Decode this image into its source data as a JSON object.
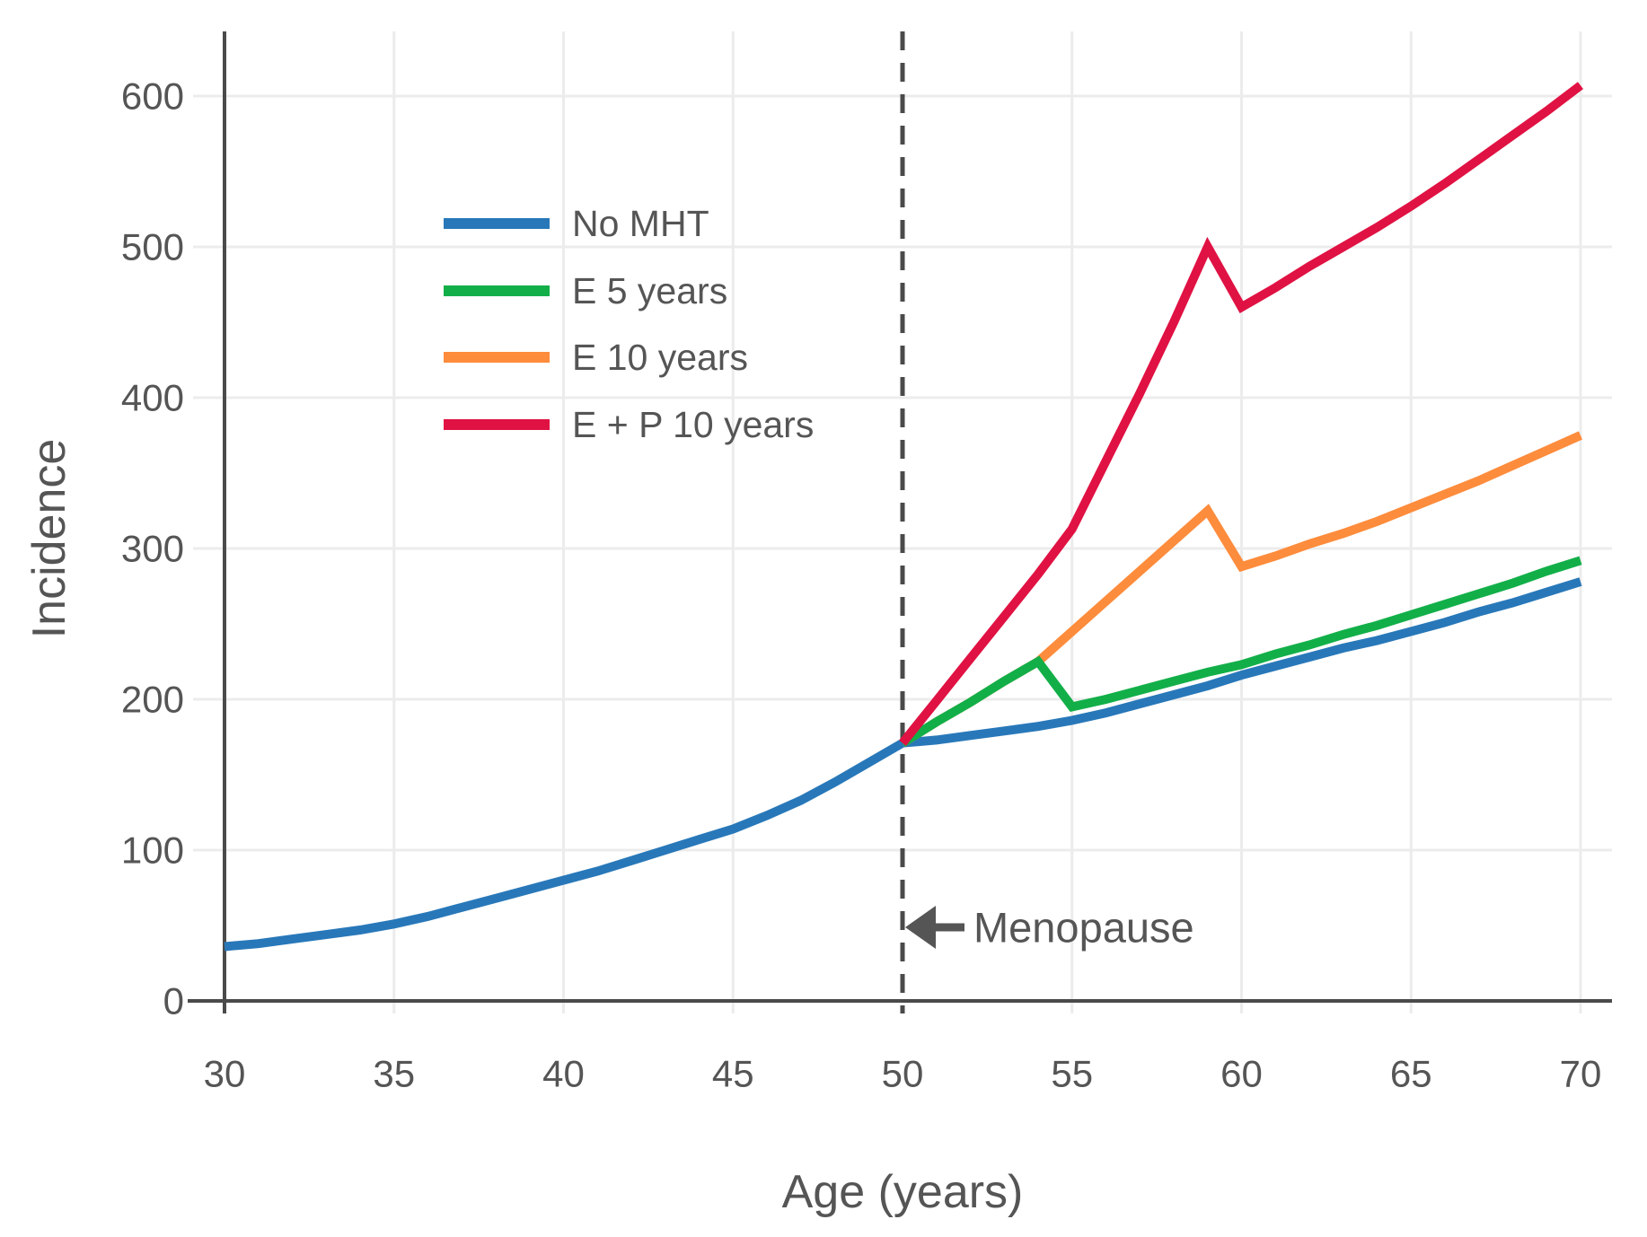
{
  "chart_data": {
    "type": "line",
    "title": "",
    "xlabel": "Age (years)",
    "ylabel": "Incidence",
    "xlim": [
      30,
      70
    ],
    "ylim": [
      0,
      600
    ],
    "x_ticks": [
      30,
      35,
      40,
      45,
      50,
      55,
      60,
      65,
      70
    ],
    "y_ticks": [
      0,
      100,
      200,
      300,
      400,
      500,
      600
    ],
    "grid": true,
    "legend_position": "upper-left-inside",
    "reference_line": {
      "x": 50,
      "style": "dashed"
    },
    "annotation": {
      "text": "Menopause",
      "x": 50,
      "y": 50,
      "arrow": "left"
    },
    "series": [
      {
        "name": "No MHT",
        "color": "#2878B9",
        "points": [
          [
            30,
            36
          ],
          [
            31,
            38
          ],
          [
            32,
            41
          ],
          [
            33,
            44
          ],
          [
            34,
            47
          ],
          [
            35,
            51
          ],
          [
            36,
            56
          ],
          [
            37,
            62
          ],
          [
            38,
            68
          ],
          [
            39,
            74
          ],
          [
            40,
            80
          ],
          [
            41,
            86
          ],
          [
            42,
            93
          ],
          [
            43,
            100
          ],
          [
            44,
            107
          ],
          [
            45,
            114
          ],
          [
            46,
            123
          ],
          [
            47,
            133
          ],
          [
            48,
            145
          ],
          [
            49,
            158
          ],
          [
            50,
            171
          ],
          [
            51,
            173
          ],
          [
            52,
            176
          ],
          [
            53,
            179
          ],
          [
            54,
            182
          ],
          [
            55,
            186
          ],
          [
            56,
            191
          ],
          [
            57,
            197
          ],
          [
            58,
            203
          ],
          [
            59,
            209
          ],
          [
            60,
            216
          ],
          [
            61,
            222
          ],
          [
            62,
            228
          ],
          [
            63,
            234
          ],
          [
            64,
            239
          ],
          [
            65,
            245
          ],
          [
            66,
            251
          ],
          [
            67,
            258
          ],
          [
            68,
            264
          ],
          [
            69,
            271
          ],
          [
            70,
            278
          ]
        ]
      },
      {
        "name": "E 5 years",
        "color": "#12AF49",
        "points": [
          [
            50,
            171
          ],
          [
            51,
            185
          ],
          [
            52,
            198
          ],
          [
            53,
            212
          ],
          [
            54,
            225
          ],
          [
            55,
            195
          ],
          [
            56,
            200
          ],
          [
            57,
            206
          ],
          [
            58,
            212
          ],
          [
            59,
            218
          ],
          [
            60,
            223
          ],
          [
            61,
            230
          ],
          [
            62,
            236
          ],
          [
            63,
            243
          ],
          [
            64,
            249
          ],
          [
            65,
            256
          ],
          [
            66,
            263
          ],
          [
            67,
            270
          ],
          [
            68,
            277
          ],
          [
            69,
            285
          ],
          [
            70,
            292
          ]
        ]
      },
      {
        "name": "E 10 years",
        "color": "#FD8C3C",
        "points": [
          [
            50,
            171
          ],
          [
            51,
            185
          ],
          [
            52,
            198
          ],
          [
            53,
            212
          ],
          [
            54,
            225
          ],
          [
            55,
            245
          ],
          [
            56,
            265
          ],
          [
            57,
            285
          ],
          [
            58,
            305
          ],
          [
            59,
            325
          ],
          [
            60,
            288
          ],
          [
            61,
            295
          ],
          [
            62,
            303
          ],
          [
            63,
            310
          ],
          [
            64,
            318
          ],
          [
            65,
            327
          ],
          [
            66,
            336
          ],
          [
            67,
            345
          ],
          [
            68,
            355
          ],
          [
            69,
            365
          ],
          [
            70,
            375
          ]
        ]
      },
      {
        "name": "E + P 10 years",
        "color": "#E01243",
        "points": [
          [
            50,
            171
          ],
          [
            51,
            199
          ],
          [
            52,
            227
          ],
          [
            53,
            255
          ],
          [
            54,
            283
          ],
          [
            55,
            313
          ],
          [
            56,
            358
          ],
          [
            57,
            403
          ],
          [
            58,
            450
          ],
          [
            59,
            500
          ],
          [
            60,
            460
          ],
          [
            61,
            473
          ],
          [
            62,
            487
          ],
          [
            63,
            500
          ],
          [
            64,
            513
          ],
          [
            65,
            527
          ],
          [
            66,
            542
          ],
          [
            67,
            558
          ],
          [
            68,
            574
          ],
          [
            69,
            590
          ],
          [
            70,
            607
          ]
        ]
      }
    ]
  },
  "styles": {
    "background": "#FFFFFF",
    "text_color": "#555555",
    "spine_color": "#4A4A4A",
    "grid_color": "#ECECEC",
    "dash_color": "#4A4A4A",
    "arrow_color": "#555555"
  }
}
